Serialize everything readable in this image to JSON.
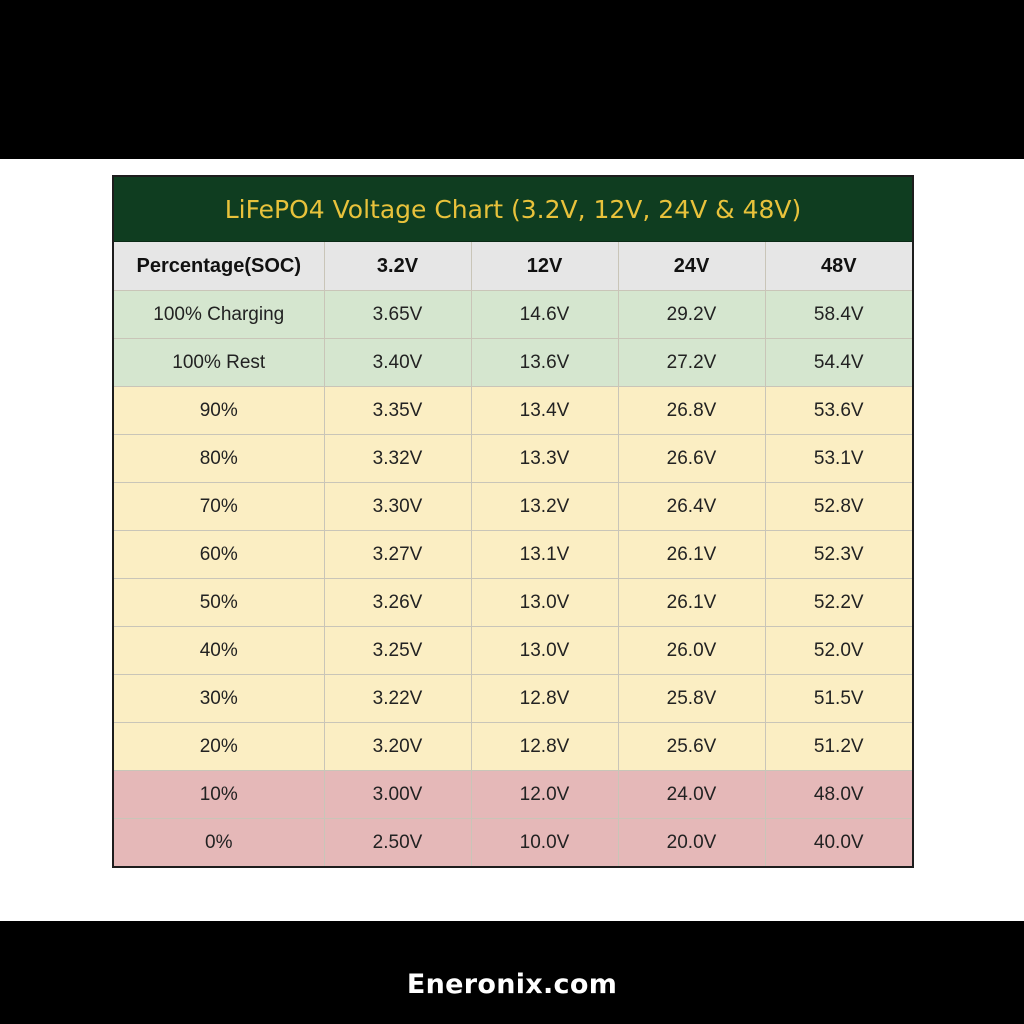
{
  "chart_data": {
    "type": "table",
    "title": "LiFePO4 Voltage Chart (3.2V, 12V, 24V & 48V)",
    "columns": [
      "Percentage(SOC)",
      "3.2V",
      "12V",
      "24V",
      "48V"
    ],
    "rows": [
      {
        "label": "100% Charging",
        "values": [
          "3.65V",
          "14.6V",
          "29.2V",
          "58.4V"
        ],
        "group": "green"
      },
      {
        "label": "100% Rest",
        "values": [
          "3.40V",
          "13.6V",
          "27.2V",
          "54.4V"
        ],
        "group": "green"
      },
      {
        "label": "90%",
        "values": [
          "3.35V",
          "13.4V",
          "26.8V",
          "53.6V"
        ],
        "group": "yellow"
      },
      {
        "label": "80%",
        "values": [
          "3.32V",
          "13.3V",
          "26.6V",
          "53.1V"
        ],
        "group": "yellow"
      },
      {
        "label": "70%",
        "values": [
          "3.30V",
          "13.2V",
          "26.4V",
          "52.8V"
        ],
        "group": "yellow"
      },
      {
        "label": "60%",
        "values": [
          "3.27V",
          "13.1V",
          "26.1V",
          "52.3V"
        ],
        "group": "yellow"
      },
      {
        "label": "50%",
        "values": [
          "3.26V",
          "13.0V",
          "26.1V",
          "52.2V"
        ],
        "group": "yellow"
      },
      {
        "label": "40%",
        "values": [
          "3.25V",
          "13.0V",
          "26.0V",
          "52.0V"
        ],
        "group": "yellow"
      },
      {
        "label": "30%",
        "values": [
          "3.22V",
          "12.8V",
          "25.8V",
          "51.5V"
        ],
        "group": "yellow"
      },
      {
        "label": "20%",
        "values": [
          "3.20V",
          "12.8V",
          "25.6V",
          "51.2V"
        ],
        "group": "yellow"
      },
      {
        "label": "10%",
        "values": [
          "3.00V",
          "12.0V",
          "24.0V",
          "48.0V"
        ],
        "group": "red"
      },
      {
        "label": "0%",
        "values": [
          "2.50V",
          "10.0V",
          "20.0V",
          "40.0V"
        ],
        "group": "red"
      }
    ]
  },
  "footer": {
    "text": "Eneronix.com"
  },
  "colors": {
    "title_bg": "#0f3d20",
    "title_text": "#e8c23b",
    "header_bg": "#e6e6e6",
    "green_row": "#d5e6cf",
    "yellow_row": "#fbeec3",
    "red_row": "#e5b8b8"
  }
}
